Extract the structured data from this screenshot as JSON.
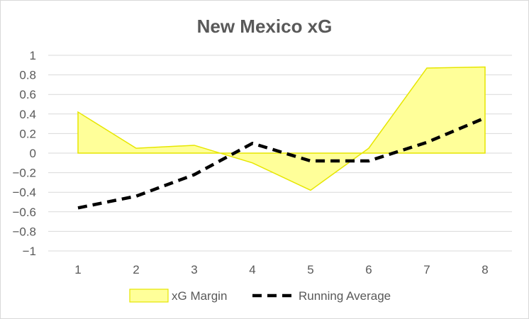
{
  "chart_data": {
    "type": "area",
    "title": "New Mexico xG",
    "xlabel": "",
    "ylabel": "",
    "x": [
      1,
      2,
      3,
      4,
      5,
      6,
      7,
      8
    ],
    "ylim": [
      -1,
      1
    ],
    "yticks": [
      1,
      0.8,
      0.6,
      0.4,
      0.2,
      0,
      -0.2,
      -0.4,
      -0.6,
      -0.8,
      -1
    ],
    "ytick_labels": [
      "1",
      "0.8",
      "0.6",
      "0.4",
      "0.2",
      "0",
      "−0.2",
      "−0.4",
      "−0.6",
      "−0.8",
      "−1"
    ],
    "grid": true,
    "legend_position": "bottom",
    "series": [
      {
        "name": "xG Margin",
        "kind": "area",
        "color": "#ffff99",
        "edge_color": "#e6e600",
        "values": [
          0.42,
          0.05,
          0.08,
          -0.1,
          -0.38,
          0.05,
          0.87,
          0.88
        ]
      },
      {
        "name": "Running Average",
        "kind": "line",
        "style": "dashed",
        "color": "#000000",
        "values": [
          -0.56,
          -0.44,
          -0.22,
          0.1,
          -0.08,
          -0.08,
          0.11,
          0.36
        ]
      }
    ]
  }
}
